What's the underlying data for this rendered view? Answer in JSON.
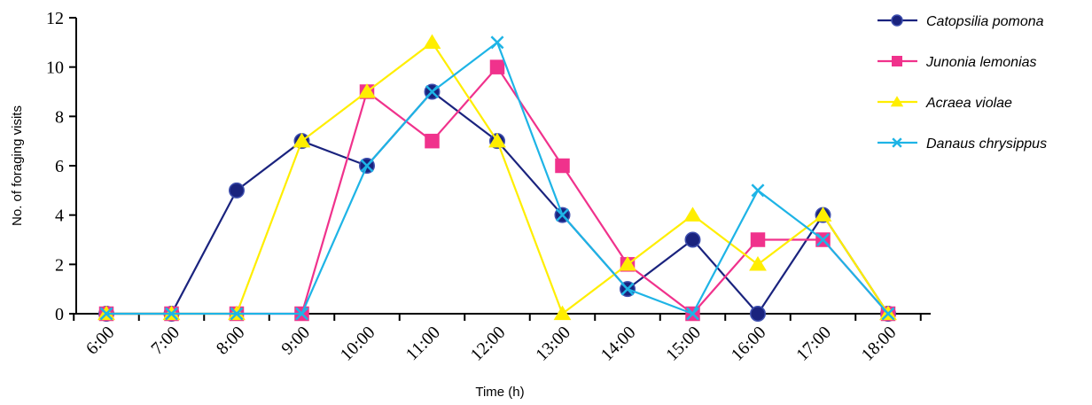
{
  "chart_data": {
    "type": "line",
    "categories": [
      "6:00",
      "7:00",
      "8:00",
      "9:00",
      "10:00",
      "11:00",
      "12:00",
      "13:00",
      "14:00",
      "15:00",
      "16:00",
      "17:00",
      "18:00"
    ],
    "xlabel": "Time (h)",
    "ylabel": "No. of foraging visits",
    "ylim": [
      0,
      12
    ],
    "yticks": [
      0,
      2,
      4,
      6,
      8,
      10,
      12
    ],
    "grid": false,
    "legend_position": "right",
    "series": [
      {
        "name": "Catopsilia pomona",
        "color": "#1a237e",
        "marker": "diamond",
        "values": [
          0,
          0,
          5,
          7,
          6,
          9,
          7,
          4,
          1,
          3,
          0,
          4,
          0
        ]
      },
      {
        "name": "Junonia lemonias",
        "color": "#f0328c",
        "marker": "square",
        "values": [
          0,
          0,
          0,
          0,
          9,
          7,
          10,
          6,
          2,
          0,
          3,
          3,
          0
        ]
      },
      {
        "name": "Acraea violae",
        "color": "#ffee00",
        "marker": "triangle",
        "values": [
          0,
          0,
          0,
          7,
          9,
          11,
          7,
          0,
          2,
          4,
          2,
          4,
          0
        ]
      },
      {
        "name": "Danaus chrysippus",
        "color": "#1eb4e6",
        "marker": "x",
        "values": [
          0,
          0,
          0,
          0,
          6,
          9,
          11,
          4,
          1,
          0,
          5,
          3,
          0
        ]
      }
    ]
  }
}
